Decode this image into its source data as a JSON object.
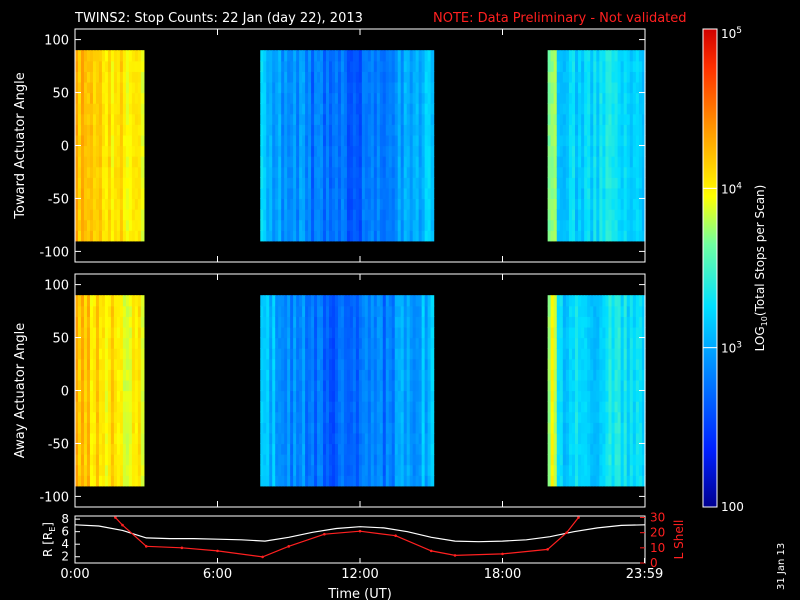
{
  "header": {
    "title": "TWINS2: Stop Counts: 22 Jan (day  22), 2013",
    "note": "NOTE: Data Preliminary - Not validated"
  },
  "footer": {
    "date_stamp": "31 Jan 13"
  },
  "chart_data": [
    {
      "type": "heatmap",
      "ylabel": "Toward Actuator Angle",
      "ylim": [
        -110,
        110
      ],
      "yticks": [
        "100",
        "50",
        "0",
        "-50",
        "-100"
      ],
      "ytick_values": [
        100,
        50,
        0,
        -50,
        -100
      ],
      "xlim": [
        0,
        24
      ],
      "data_segments_hours": [
        [
          0.0,
          2.9
        ],
        [
          7.8,
          15.1
        ],
        [
          19.9,
          24.0
        ]
      ],
      "data_angle_range": [
        -90,
        90
      ],
      "segment_level_log10": [
        4.05,
        2.7,
        3.25
      ]
    },
    {
      "type": "heatmap",
      "ylabel": "Away Actuator Angle",
      "ylim": [
        -110,
        110
      ],
      "yticks": [
        "100",
        "50",
        "0",
        "-50",
        "-100"
      ],
      "ytick_values": [
        100,
        50,
        0,
        -50,
        -100
      ],
      "xlim": [
        0,
        24
      ],
      "data_segments_hours": [
        [
          0.0,
          2.9
        ],
        [
          7.8,
          15.1
        ],
        [
          19.9,
          24.0
        ]
      ],
      "data_angle_range": [
        -90,
        90
      ],
      "segment_level_log10": [
        4.05,
        2.7,
        3.25
      ]
    },
    {
      "type": "line",
      "ylabel_left": "R [R",
      "ylabel_left_sub": "E",
      "ylabel_left_end": "]",
      "ylabel_right": "L Shell",
      "left_yticks": [
        "8",
        "6",
        "4",
        "2"
      ],
      "left_ytick_values": [
        8,
        6,
        4,
        2
      ],
      "left_ylim": [
        1,
        8.5
      ],
      "right_yticks": [
        "30",
        "20",
        "10",
        "0"
      ],
      "right_ytick_values": [
        30,
        20,
        10,
        0
      ],
      "right_ylim": [
        0,
        31
      ],
      "xlabel": "Time (UT)",
      "xticks": [
        "0:00",
        "6:00",
        "12:00",
        "18:00",
        "23:59"
      ],
      "xtick_values": [
        0,
        6,
        12,
        18,
        23.98
      ],
      "series": [
        {
          "axis": "left",
          "color": "#ffffff",
          "x": [
            0,
            1,
            2,
            3,
            4,
            5,
            6,
            7,
            8,
            9,
            10,
            11,
            12,
            13,
            14,
            15,
            16,
            17,
            18,
            19,
            20,
            21,
            22,
            23,
            24
          ],
          "y": [
            7.1,
            6.9,
            6.2,
            5.0,
            4.9,
            4.9,
            4.8,
            4.7,
            4.5,
            5.1,
            5.9,
            6.5,
            6.8,
            6.6,
            6.0,
            5.1,
            4.5,
            4.4,
            4.5,
            4.7,
            5.2,
            6.0,
            6.6,
            7.0,
            7.1
          ]
        },
        {
          "axis": "right",
          "color": "#ff2020",
          "x": [
            1.7,
            2.0,
            3.0,
            4.5,
            6.0,
            7.9,
            9.0,
            10.5,
            12.0,
            13.5,
            15.0,
            16.0,
            18.0,
            19.9,
            20.7,
            21.2
          ],
          "y": [
            30,
            25,
            11,
            10,
            8,
            4,
            11,
            19,
            21,
            18,
            8,
            5,
            6,
            9,
            20,
            30
          ]
        }
      ]
    }
  ],
  "colorbar": {
    "label": "LOG10(Total Stops per Scan)",
    "label_pre": "LOG",
    "label_sub": "10",
    "label_post": "(Total Stops per Scan)",
    "tick_base": "10",
    "ticks": [
      {
        "base": "10",
        "exp": "5",
        "log": 5
      },
      {
        "base": "10",
        "exp": "4",
        "log": 4
      },
      {
        "base": "10",
        "exp": "3",
        "log": 3
      },
      {
        "base": "100",
        "exp": "",
        "log": 2
      }
    ],
    "range_log10": [
      2,
      5
    ]
  }
}
